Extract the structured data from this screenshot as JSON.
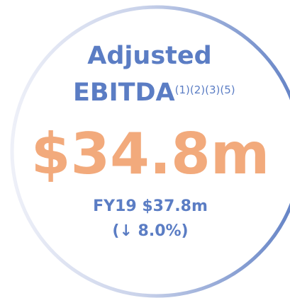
{
  "heading": {
    "line1": "Adjusted",
    "line2": "EBITDA",
    "footnotes": "(1)(2)(3)(5)"
  },
  "value": "$34.8m",
  "comparison": {
    "line1": "FY19 $37.8m",
    "line2": "(↓ 8.0%)"
  }
}
